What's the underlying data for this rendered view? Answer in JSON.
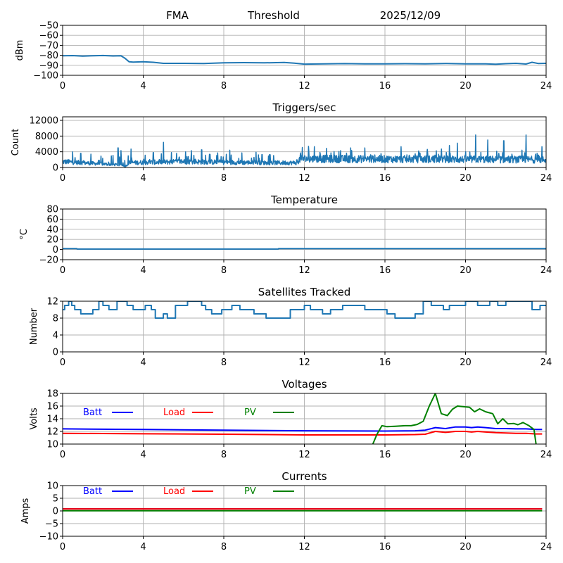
{
  "header": {
    "station": "FMA",
    "mode": "Threshold",
    "date": "2025/12/09"
  },
  "chart_data": [
    {
      "id": "threshold",
      "type": "line",
      "title": "",
      "ylabel": "dBm",
      "xlim": [
        0,
        24
      ],
      "ylim": [
        -100,
        -50
      ],
      "xticks": [
        0,
        4,
        8,
        12,
        16,
        20,
        24
      ],
      "yticks": [
        -100,
        -90,
        -80,
        -70,
        -60,
        -50
      ],
      "ytick_labels": [
        "−100",
        "−90",
        "−80",
        "−70",
        "−60",
        "−50"
      ],
      "grid": true,
      "series": [
        {
          "name": "threshold",
          "color": "#1f77b4",
          "x": [
            0,
            0.5,
            1,
            1.5,
            2,
            2.5,
            2.9,
            3.1,
            3.3,
            3.5,
            4,
            4.5,
            5,
            6,
            7,
            8,
            9,
            10,
            11,
            11.5,
            12,
            13,
            14,
            15,
            16,
            17,
            18,
            19,
            20,
            21,
            21.5,
            22,
            22.5,
            23,
            23.3,
            23.6,
            24
          ],
          "y": [
            -80.5,
            -80.3,
            -80.8,
            -80.5,
            -80.2,
            -80.6,
            -80.5,
            -83,
            -86.5,
            -86.8,
            -86.5,
            -87,
            -88,
            -88,
            -88.2,
            -87.5,
            -87.3,
            -87.5,
            -87.2,
            -87.8,
            -88.8,
            -88.5,
            -88.3,
            -88.6,
            -88.5,
            -88.4,
            -88.6,
            -88.2,
            -88.5,
            -88.6,
            -88.9,
            -88.4,
            -88,
            -88.7,
            -87,
            -88.2,
            -88
          ]
        }
      ]
    },
    {
      "id": "triggers",
      "type": "line",
      "title": "Triggers/sec",
      "ylabel": "Count",
      "xlim": [
        0,
        24
      ],
      "ylim": [
        0,
        12900
      ],
      "xticks": [
        0,
        4,
        8,
        12,
        16,
        20,
        24
      ],
      "yticks": [
        0,
        4000,
        8000,
        12000
      ],
      "grid": true,
      "series": [
        {
          "name": "triggers",
          "color": "#1f77b4",
          "description": "noisy series; baseline ~1500 before 11.7h with spikes to ~6500 at 5h; baseline ~2000 after 11.7h with spikes up to ~8300",
          "baseline": [
            [
              0,
              1500
            ],
            [
              3,
              600
            ],
            [
              3.1,
              200
            ],
            [
              3.3,
              1200
            ],
            [
              6,
              1500
            ],
            [
              10,
              1200
            ],
            [
              11.6,
              1200
            ],
            [
              11.8,
              2200
            ],
            [
              24,
              2000
            ]
          ],
          "spikes": [
            [
              0.5,
              4000
            ],
            [
              0.9,
              3600
            ],
            [
              1.4,
              3400
            ],
            [
              1.9,
              2900
            ],
            [
              2.5,
              3100
            ],
            [
              2.75,
              5000
            ],
            [
              2.9,
              4300
            ],
            [
              3.4,
              4700
            ],
            [
              4.5,
              3800
            ],
            [
              5.0,
              6400
            ],
            [
              5.4,
              3800
            ],
            [
              6.1,
              4000
            ],
            [
              6.4,
              4300
            ],
            [
              6.9,
              4500
            ],
            [
              7.7,
              3700
            ],
            [
              8.3,
              4400
            ],
            [
              8.9,
              3700
            ],
            [
              9.6,
              3900
            ],
            [
              9.9,
              3300
            ],
            [
              11.9,
              5100
            ],
            [
              12.2,
              5400
            ],
            [
              12.5,
              5300
            ],
            [
              13.1,
              4900
            ],
            [
              13.8,
              4300
            ],
            [
              14.3,
              5000
            ],
            [
              15.0,
              5000
            ],
            [
              15.5,
              3200
            ],
            [
              16.8,
              5300
            ],
            [
              17.5,
              3500
            ],
            [
              18.1,
              4600
            ],
            [
              18.8,
              4700
            ],
            [
              19.2,
              5600
            ],
            [
              19.6,
              6200
            ],
            [
              20.5,
              8300
            ],
            [
              21.1,
              7000
            ],
            [
              21.9,
              6800
            ],
            [
              22.8,
              4400
            ],
            [
              23.0,
              8300
            ],
            [
              23.8,
              5300
            ]
          ]
        }
      ]
    },
    {
      "id": "temperature",
      "type": "line",
      "title": "Temperature",
      "ylabel": "°C",
      "xlim": [
        0,
        24
      ],
      "ylim": [
        -20,
        80
      ],
      "xticks": [
        0,
        4,
        8,
        12,
        16,
        20,
        24
      ],
      "yticks": [
        -20,
        0,
        20,
        40,
        60,
        80
      ],
      "ytick_labels": [
        "−20",
        "0",
        "20",
        "40",
        "60",
        "80"
      ],
      "grid": true,
      "series": [
        {
          "name": "temperature",
          "color": "#1f77b4",
          "x": [
            0,
            0.7,
            0.72,
            10.7,
            10.72,
            24
          ],
          "y": [
            2,
            2,
            1,
            1,
            2,
            2
          ]
        }
      ]
    },
    {
      "id": "satellites",
      "type": "line",
      "title": "Satellites Tracked",
      "ylabel": "Number",
      "xlim": [
        0,
        24
      ],
      "ylim": [
        0,
        12
      ],
      "xticks": [
        0,
        4,
        8,
        12,
        16,
        20,
        24
      ],
      "yticks": [
        0,
        4,
        8,
        12
      ],
      "grid": true,
      "series": [
        {
          "name": "satellites",
          "color": "#1f77b4",
          "step": true,
          "x": [
            0,
            0.1,
            0.3,
            0.45,
            0.6,
            0.9,
            1.5,
            1.8,
            2.0,
            2.3,
            2.7,
            3.2,
            3.5,
            3.9,
            4.1,
            4.4,
            4.6,
            5.0,
            5.2,
            5.6,
            6.2,
            6.9,
            7.1,
            7.4,
            7.9,
            8.4,
            8.8,
            9.5,
            10.1,
            10.6,
            11.3,
            11.8,
            12.0,
            12.3,
            12.9,
            13.3,
            13.9,
            14.5,
            15.0,
            15.5,
            16.1,
            16.5,
            17.0,
            17.5,
            17.9,
            18.3,
            18.9,
            19.2,
            19.5,
            20.0,
            20.6,
            21.2,
            21.6,
            22.0,
            22.7,
            23.3,
            23.7,
            24
          ],
          "y": [
            10,
            11,
            12,
            11,
            10,
            9,
            10,
            12,
            11,
            10,
            12,
            11,
            10,
            10,
            11,
            10,
            8,
            9,
            8,
            11,
            12,
            11,
            10,
            9,
            10,
            11,
            10,
            9,
            8,
            8,
            10,
            10,
            11,
            10,
            9,
            10,
            11,
            11,
            10,
            10,
            9,
            8,
            8,
            9,
            12,
            11,
            10,
            11,
            11,
            12,
            11,
            12,
            11,
            12,
            12,
            10,
            11,
            11
          ]
        }
      ]
    },
    {
      "id": "voltages",
      "type": "line",
      "title": "Voltages",
      "ylabel": "Volts",
      "xlim": [
        0,
        24
      ],
      "ylim": [
        10,
        18
      ],
      "xticks": [
        0,
        4,
        8,
        12,
        16,
        20,
        24
      ],
      "yticks": [
        10,
        12,
        14,
        16,
        18
      ],
      "grid": true,
      "legend": {
        "placement": "upper-left inline",
        "entries": [
          {
            "label": "Batt",
            "color": "#0000ff"
          },
          {
            "label": "Load",
            "color": "#ff0000"
          },
          {
            "label": "PV",
            "color": "#008000"
          }
        ]
      },
      "series": [
        {
          "name": "Batt",
          "color": "#0000ff",
          "x": [
            0,
            4,
            8,
            12,
            16,
            17.5,
            18,
            18.5,
            19,
            19.5,
            20,
            20.3,
            20.6,
            21,
            21.5,
            22,
            22.5,
            23,
            23.5,
            23.8
          ],
          "y": [
            12.4,
            12.3,
            12.2,
            12.1,
            12.05,
            12.1,
            12.2,
            12.6,
            12.45,
            12.7,
            12.7,
            12.6,
            12.7,
            12.6,
            12.45,
            12.45,
            12.4,
            12.4,
            12.3,
            12.3
          ]
        },
        {
          "name": "Load",
          "color": "#ff0000",
          "x": [
            0,
            4,
            8,
            12,
            16,
            17.5,
            18,
            18.5,
            19,
            19.5,
            20,
            20.3,
            20.6,
            21,
            21.5,
            22,
            22.5,
            23,
            23.5,
            23.8
          ],
          "y": [
            11.7,
            11.62,
            11.55,
            11.45,
            11.45,
            11.5,
            11.55,
            12.0,
            11.85,
            12.0,
            12.0,
            11.9,
            12.0,
            11.9,
            11.8,
            11.75,
            11.7,
            11.7,
            11.6,
            11.6
          ]
        },
        {
          "name": "PV",
          "color": "#008000",
          "x": [
            15.4,
            15.6,
            15.85,
            16.1,
            16.5,
            17.0,
            17.3,
            17.6,
            17.9,
            18.2,
            18.5,
            18.8,
            19.1,
            19.35,
            19.6,
            19.9,
            20.2,
            20.45,
            20.7,
            21.0,
            21.35,
            21.6,
            21.85,
            22.1,
            22.4,
            22.6,
            22.85,
            23.15,
            23.4,
            23.5
          ],
          "y": [
            10,
            11.5,
            12.9,
            12.75,
            12.8,
            12.9,
            12.9,
            13.1,
            13.6,
            16.0,
            18.0,
            14.8,
            14.5,
            15.5,
            16.0,
            15.9,
            15.8,
            15.1,
            15.55,
            15.1,
            14.8,
            13.2,
            14.0,
            13.2,
            13.25,
            13.05,
            13.4,
            12.9,
            12.3,
            10
          ]
        }
      ]
    },
    {
      "id": "currents",
      "type": "line",
      "title": "Currents",
      "ylabel": "Amps",
      "xlim": [
        0,
        24
      ],
      "ylim": [
        -10,
        10
      ],
      "xticks": [
        0,
        4,
        8,
        12,
        16,
        20,
        24
      ],
      "yticks": [
        -10,
        -5,
        0,
        5,
        10
      ],
      "ytick_labels": [
        "−10",
        "−5",
        "0",
        "5",
        "10"
      ],
      "grid": true,
      "legend": {
        "placement": "upper-left inline",
        "entries": [
          {
            "label": "Batt",
            "color": "#0000ff"
          },
          {
            "label": "Load",
            "color": "#ff0000"
          },
          {
            "label": "PV",
            "color": "#008000"
          }
        ]
      },
      "series": [
        {
          "name": "Batt",
          "color": "#0000ff",
          "x": [
            0,
            23.8
          ],
          "y": [
            0.8,
            0.8
          ]
        },
        {
          "name": "Load",
          "color": "#ff0000",
          "x": [
            0,
            23.8
          ],
          "y": [
            0.8,
            0.8
          ]
        },
        {
          "name": "PV",
          "color": "#008000",
          "x": [
            0,
            23.8
          ],
          "y": [
            0.05,
            0.05
          ]
        }
      ]
    }
  ]
}
